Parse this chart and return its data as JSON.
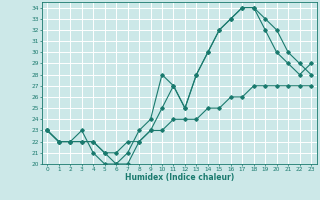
{
  "xlabel": "Humidex (Indice chaleur)",
  "xlim": [
    -0.5,
    23.5
  ],
  "ylim": [
    20,
    34.5
  ],
  "yticks": [
    20,
    21,
    22,
    23,
    24,
    25,
    26,
    27,
    28,
    29,
    30,
    31,
    32,
    33,
    34
  ],
  "xticks": [
    0,
    1,
    2,
    3,
    4,
    5,
    6,
    7,
    8,
    9,
    10,
    11,
    12,
    13,
    14,
    15,
    16,
    17,
    18,
    19,
    20,
    21,
    22,
    23
  ],
  "line_color": "#1a7a6e",
  "bg_color": "#cce8e8",
  "grid_color": "#ffffff",
  "curve1_x": [
    0,
    1,
    2,
    3,
    4,
    5,
    6,
    7,
    8,
    9,
    10,
    11,
    12,
    13,
    14,
    15,
    16,
    17,
    18,
    19,
    20,
    21,
    22,
    23
  ],
  "curve1_y": [
    23,
    22,
    22,
    23,
    21,
    20,
    20,
    21,
    23,
    24,
    28,
    27,
    25,
    28,
    30,
    32,
    33,
    34,
    34,
    33,
    32,
    30,
    29,
    28
  ],
  "curve2_x": [
    0,
    1,
    2,
    3,
    4,
    5,
    6,
    7,
    8,
    9,
    10,
    11,
    12,
    13,
    14,
    15,
    16,
    17,
    18,
    19,
    20,
    21,
    22,
    23
  ],
  "curve2_y": [
    23,
    22,
    22,
    22,
    22,
    21,
    20,
    20,
    22,
    23,
    25,
    27,
    25,
    28,
    30,
    32,
    33,
    34,
    34,
    32,
    30,
    29,
    28,
    29
  ],
  "curve3_x": [
    0,
    1,
    2,
    3,
    4,
    5,
    6,
    7,
    8,
    9,
    10,
    11,
    12,
    13,
    14,
    15,
    16,
    17,
    18,
    19,
    20,
    21,
    22,
    23
  ],
  "curve3_y": [
    23,
    22,
    22,
    22,
    22,
    21,
    21,
    22,
    22,
    23,
    23,
    24,
    24,
    24,
    25,
    25,
    26,
    26,
    27,
    27,
    27,
    27,
    27,
    27
  ]
}
